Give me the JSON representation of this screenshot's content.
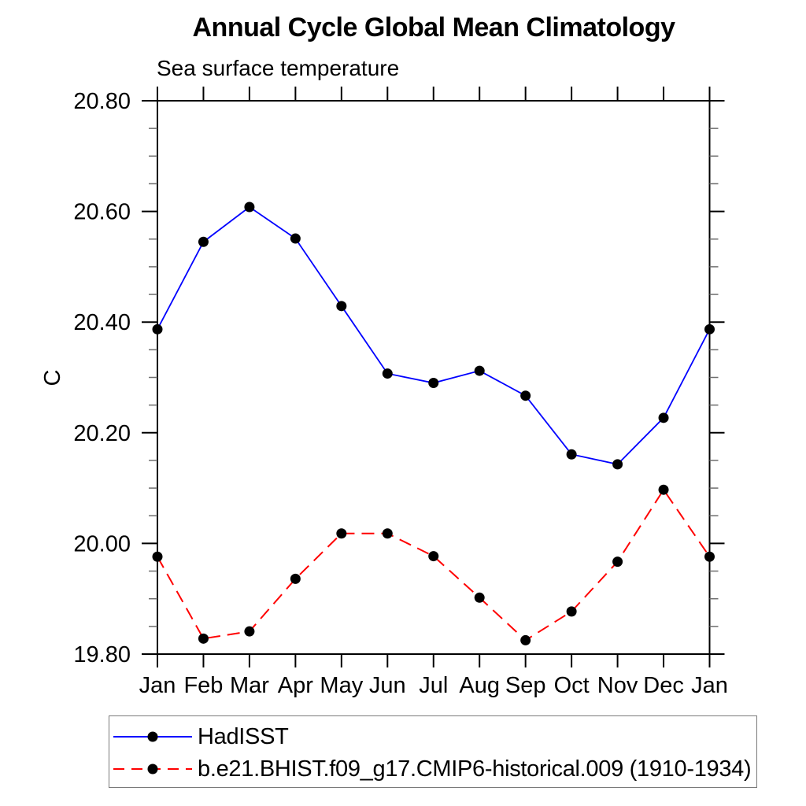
{
  "chart_data": {
    "type": "line",
    "title": "Annual Cycle Global Mean Climatology",
    "subtitle": "Sea surface temperature",
    "ylabel": "C",
    "x_categories": [
      "Jan",
      "Feb",
      "Mar",
      "Apr",
      "May",
      "Jun",
      "Jul",
      "Aug",
      "Sep",
      "Oct",
      "Nov",
      "Dec",
      "Jan"
    ],
    "ylim": [
      19.8,
      20.8
    ],
    "y_major_ticks": [
      19.8,
      20.0,
      20.2,
      20.4,
      20.6,
      20.8
    ],
    "y_tick_labels": [
      "19.80",
      "20.00",
      "20.20",
      "20.40",
      "20.60",
      "20.80"
    ],
    "y_minor_step": 0.05,
    "grid": false,
    "legend_position": "bottom-left",
    "axis_color": "#000000",
    "minor_tick_color": "#6e6e6e",
    "series": [
      {
        "name": "HadISST",
        "color": "#0000ff",
        "style": "solid",
        "marker": "filled-circle",
        "marker_color": "#000000",
        "values": [
          20.387,
          20.545,
          20.608,
          20.551,
          20.429,
          20.307,
          20.29,
          20.312,
          20.267,
          20.161,
          20.143,
          20.227,
          20.387
        ]
      },
      {
        "name": "b.e21.BHIST.f09_g17.CMIP6-historical.009 (1910-1934)",
        "color": "#ff0000",
        "style": "dashed",
        "marker": "filled-circle",
        "marker_color": "#000000",
        "values": [
          19.976,
          19.828,
          19.841,
          19.936,
          20.018,
          20.018,
          19.977,
          19.902,
          19.825,
          19.877,
          19.967,
          20.097,
          19.976
        ]
      }
    ]
  }
}
